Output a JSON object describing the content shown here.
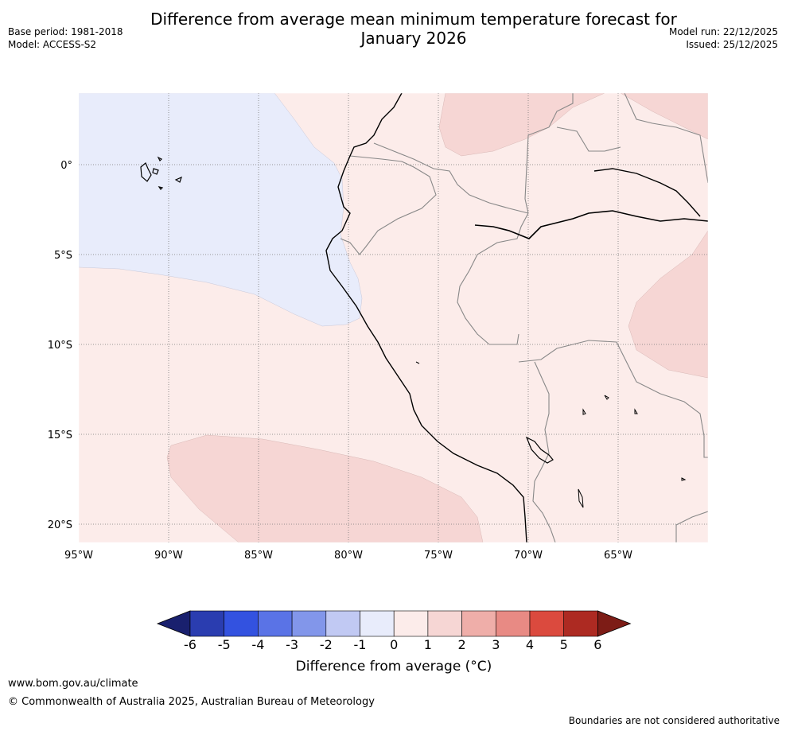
{
  "title_line1": "Difference from average mean minimum temperature forecast for",
  "title_line2": "January 2026",
  "meta": {
    "base_period": "Base period: 1981-2018",
    "model": "Model: ACCESS-S2",
    "model_run": "Model run: 22/12/2025",
    "issued": "Issued: 25/12/2025"
  },
  "map": {
    "lat_labels": [
      "0°",
      "5°S",
      "10°S",
      "15°S",
      "20°S"
    ],
    "lon_labels": [
      "95°W",
      "90°W",
      "85°W",
      "80°W",
      "75°W",
      "70°W",
      "65°W"
    ]
  },
  "colorbar": {
    "ticks": [
      "-6",
      "-5",
      "-4",
      "-3",
      "-2",
      "-1",
      "0",
      "1",
      "2",
      "3",
      "4",
      "5",
      "6"
    ],
    "colors": [
      "#19206e",
      "#2a3db0",
      "#3352e0",
      "#5a73e6",
      "#8296ea",
      "#c1c9f3",
      "#e8ecfb",
      "#fcecea",
      "#f6d6d4",
      "#efaea9",
      "#e88a84",
      "#db4a3e",
      "#ad2a22",
      "#7d1c16"
    ],
    "label": "Difference from average (°C)"
  },
  "footer": {
    "url": "www.bom.gov.au/climate",
    "copyright": "© Commonwealth of Australia 2025, Australian Bureau of Meteorology",
    "disclaimer": "Boundaries are not considered authoritative"
  }
}
